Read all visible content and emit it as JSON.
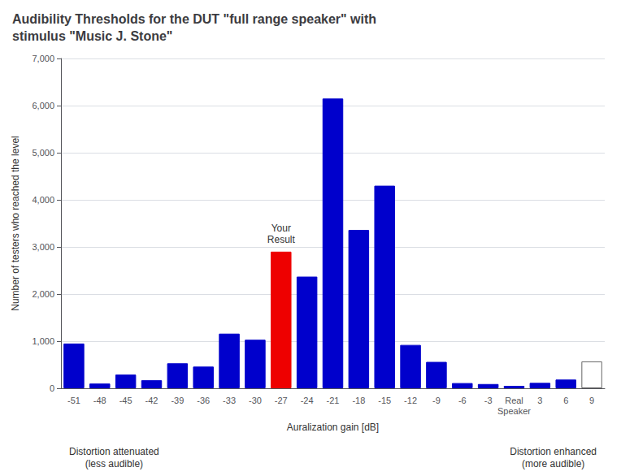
{
  "chart_data": {
    "type": "bar",
    "title": "Audibility Thresholds for the DUT \"full range speaker\" with\nstimulus \"Music J. Stone\"",
    "ylabel": "Number of testers who reached the level",
    "xlabel": "Auralization gain [dB]",
    "categories": [
      "-51",
      "-48",
      "-45",
      "-42",
      "-39",
      "-36",
      "-33",
      "-30",
      "-27",
      "-24",
      "-21",
      "-18",
      "-15",
      "-12",
      "-9",
      "-6",
      "-3",
      "Real\nSpeaker",
      "3",
      "6",
      "9"
    ],
    "values": [
      950,
      100,
      290,
      170,
      530,
      460,
      1160,
      1030,
      2900,
      2370,
      6150,
      3360,
      4300,
      920,
      560,
      110,
      90,
      50,
      115,
      185,
      570
    ],
    "colors": [
      "#0000cc",
      "#0000cc",
      "#0000cc",
      "#0000cc",
      "#0000cc",
      "#0000cc",
      "#0000cc",
      "#0000cc",
      "#ee0000",
      "#0000cc",
      "#0000cc",
      "#0000cc",
      "#0000cc",
      "#0000cc",
      "#0000cc",
      "#0000cc",
      "#0000cc",
      "#0000cc",
      "#0000cc",
      "#0000cc",
      "#ffffff"
    ],
    "ylim": [
      0,
      7000
    ],
    "yticks": [
      0,
      1000,
      2000,
      3000,
      4000,
      5000,
      6000,
      7000
    ],
    "grid": true,
    "annotations": [
      {
        "text": "Your\nResult",
        "category": "-27"
      },
      {
        "text": "Distortion attenuated\n(less audible)",
        "anchor": "left"
      },
      {
        "text": "Distortion enhanced\n(more audible)",
        "anchor": "right"
      }
    ]
  }
}
